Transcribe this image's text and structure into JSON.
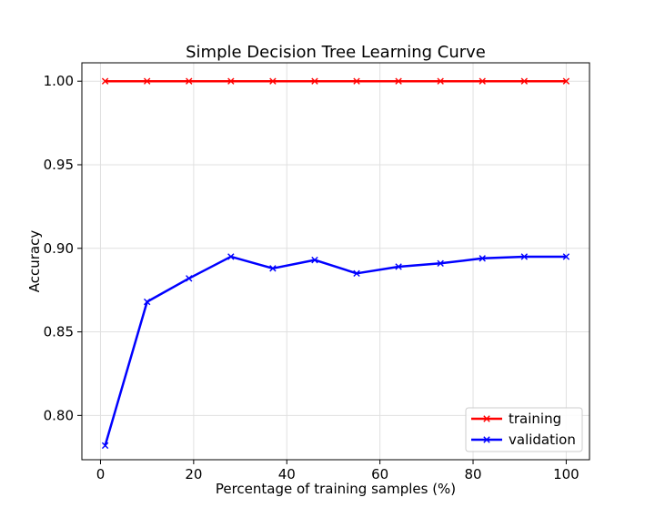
{
  "chart_data": {
    "type": "line",
    "title": "Simple Decision Tree Learning Curve",
    "xlabel": "Percentage of training samples (%)",
    "ylabel": "Accuracy",
    "xlim": [
      -4,
      105
    ],
    "ylim": [
      0.7735,
      1.011
    ],
    "xticks": [
      0,
      20,
      40,
      60,
      80,
      100
    ],
    "xtick_labels": [
      "0",
      "20",
      "40",
      "60",
      "80",
      "100"
    ],
    "yticks": [
      0.8,
      0.85,
      0.9,
      0.95,
      1.0
    ],
    "ytick_labels": [
      "0.80",
      "0.85",
      "0.90",
      "0.95",
      "1.00"
    ],
    "grid": true,
    "legend_position": "lower-right",
    "x": [
      1,
      10,
      19,
      28,
      37,
      46,
      55,
      64,
      73,
      82,
      91,
      100
    ],
    "series": [
      {
        "name": "training",
        "color": "#ff0000",
        "marker": "x",
        "values": [
          1.0,
          1.0,
          1.0,
          1.0,
          1.0,
          1.0,
          1.0,
          1.0,
          1.0,
          1.0,
          1.0,
          1.0
        ]
      },
      {
        "name": "validation",
        "color": "#0000ff",
        "marker": "x",
        "values": [
          0.782,
          0.868,
          0.882,
          0.895,
          0.888,
          0.893,
          0.885,
          0.889,
          0.891,
          0.894,
          0.895,
          0.895
        ]
      }
    ]
  }
}
